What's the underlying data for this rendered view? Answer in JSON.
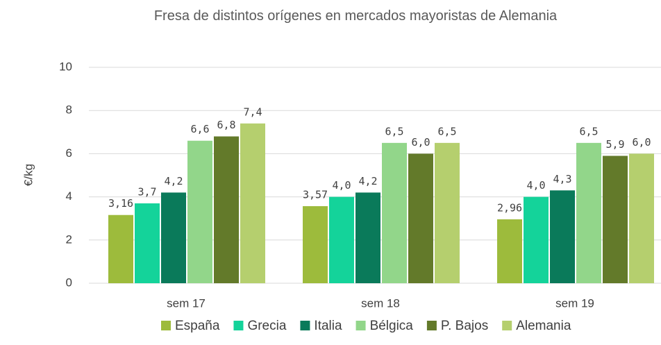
{
  "chart_data": {
    "type": "bar",
    "title": "Fresa de distintos orígenes en mercados mayoristas de Alemania",
    "y_label": "€/kg",
    "categories": [
      "sem 17",
      "sem 18",
      "sem 19"
    ],
    "series": [
      {
        "name": "España",
        "color": "#9dbb3c",
        "values": [
          3.16,
          3.57,
          2.96
        ],
        "value_labels": [
          "3,16",
          "3,57",
          "2,96"
        ]
      },
      {
        "name": "Grecia",
        "color": "#14d39a",
        "values": [
          3.7,
          4.0,
          4.0
        ],
        "value_labels": [
          "3,7",
          "4,0",
          "4,0"
        ]
      },
      {
        "name": "Italia",
        "color": "#0a7a5a",
        "values": [
          4.2,
          4.2,
          4.3
        ],
        "value_labels": [
          "4,2",
          "4,2",
          "4,3"
        ]
      },
      {
        "name": "Bélgica",
        "color": "#92d68a",
        "values": [
          6.6,
          6.5,
          6.5
        ],
        "value_labels": [
          "6,6",
          "6,5",
          "6,5"
        ]
      },
      {
        "name": "P. Bajos",
        "color": "#637a2a",
        "values": [
          6.8,
          6.0,
          5.9
        ],
        "value_labels": [
          "6,8",
          "6,0",
          "5,9"
        ]
      },
      {
        "name": "Alemania",
        "color": "#b5cf6e",
        "values": [
          7.4,
          6.5,
          6.0
        ],
        "value_labels": [
          "7,4",
          "6,5",
          "6,0"
        ]
      }
    ],
    "ylim": [
      0,
      10
    ],
    "yticks": [
      0,
      2,
      4,
      6,
      8,
      10
    ],
    "grid": true,
    "legend": "bottom"
  }
}
